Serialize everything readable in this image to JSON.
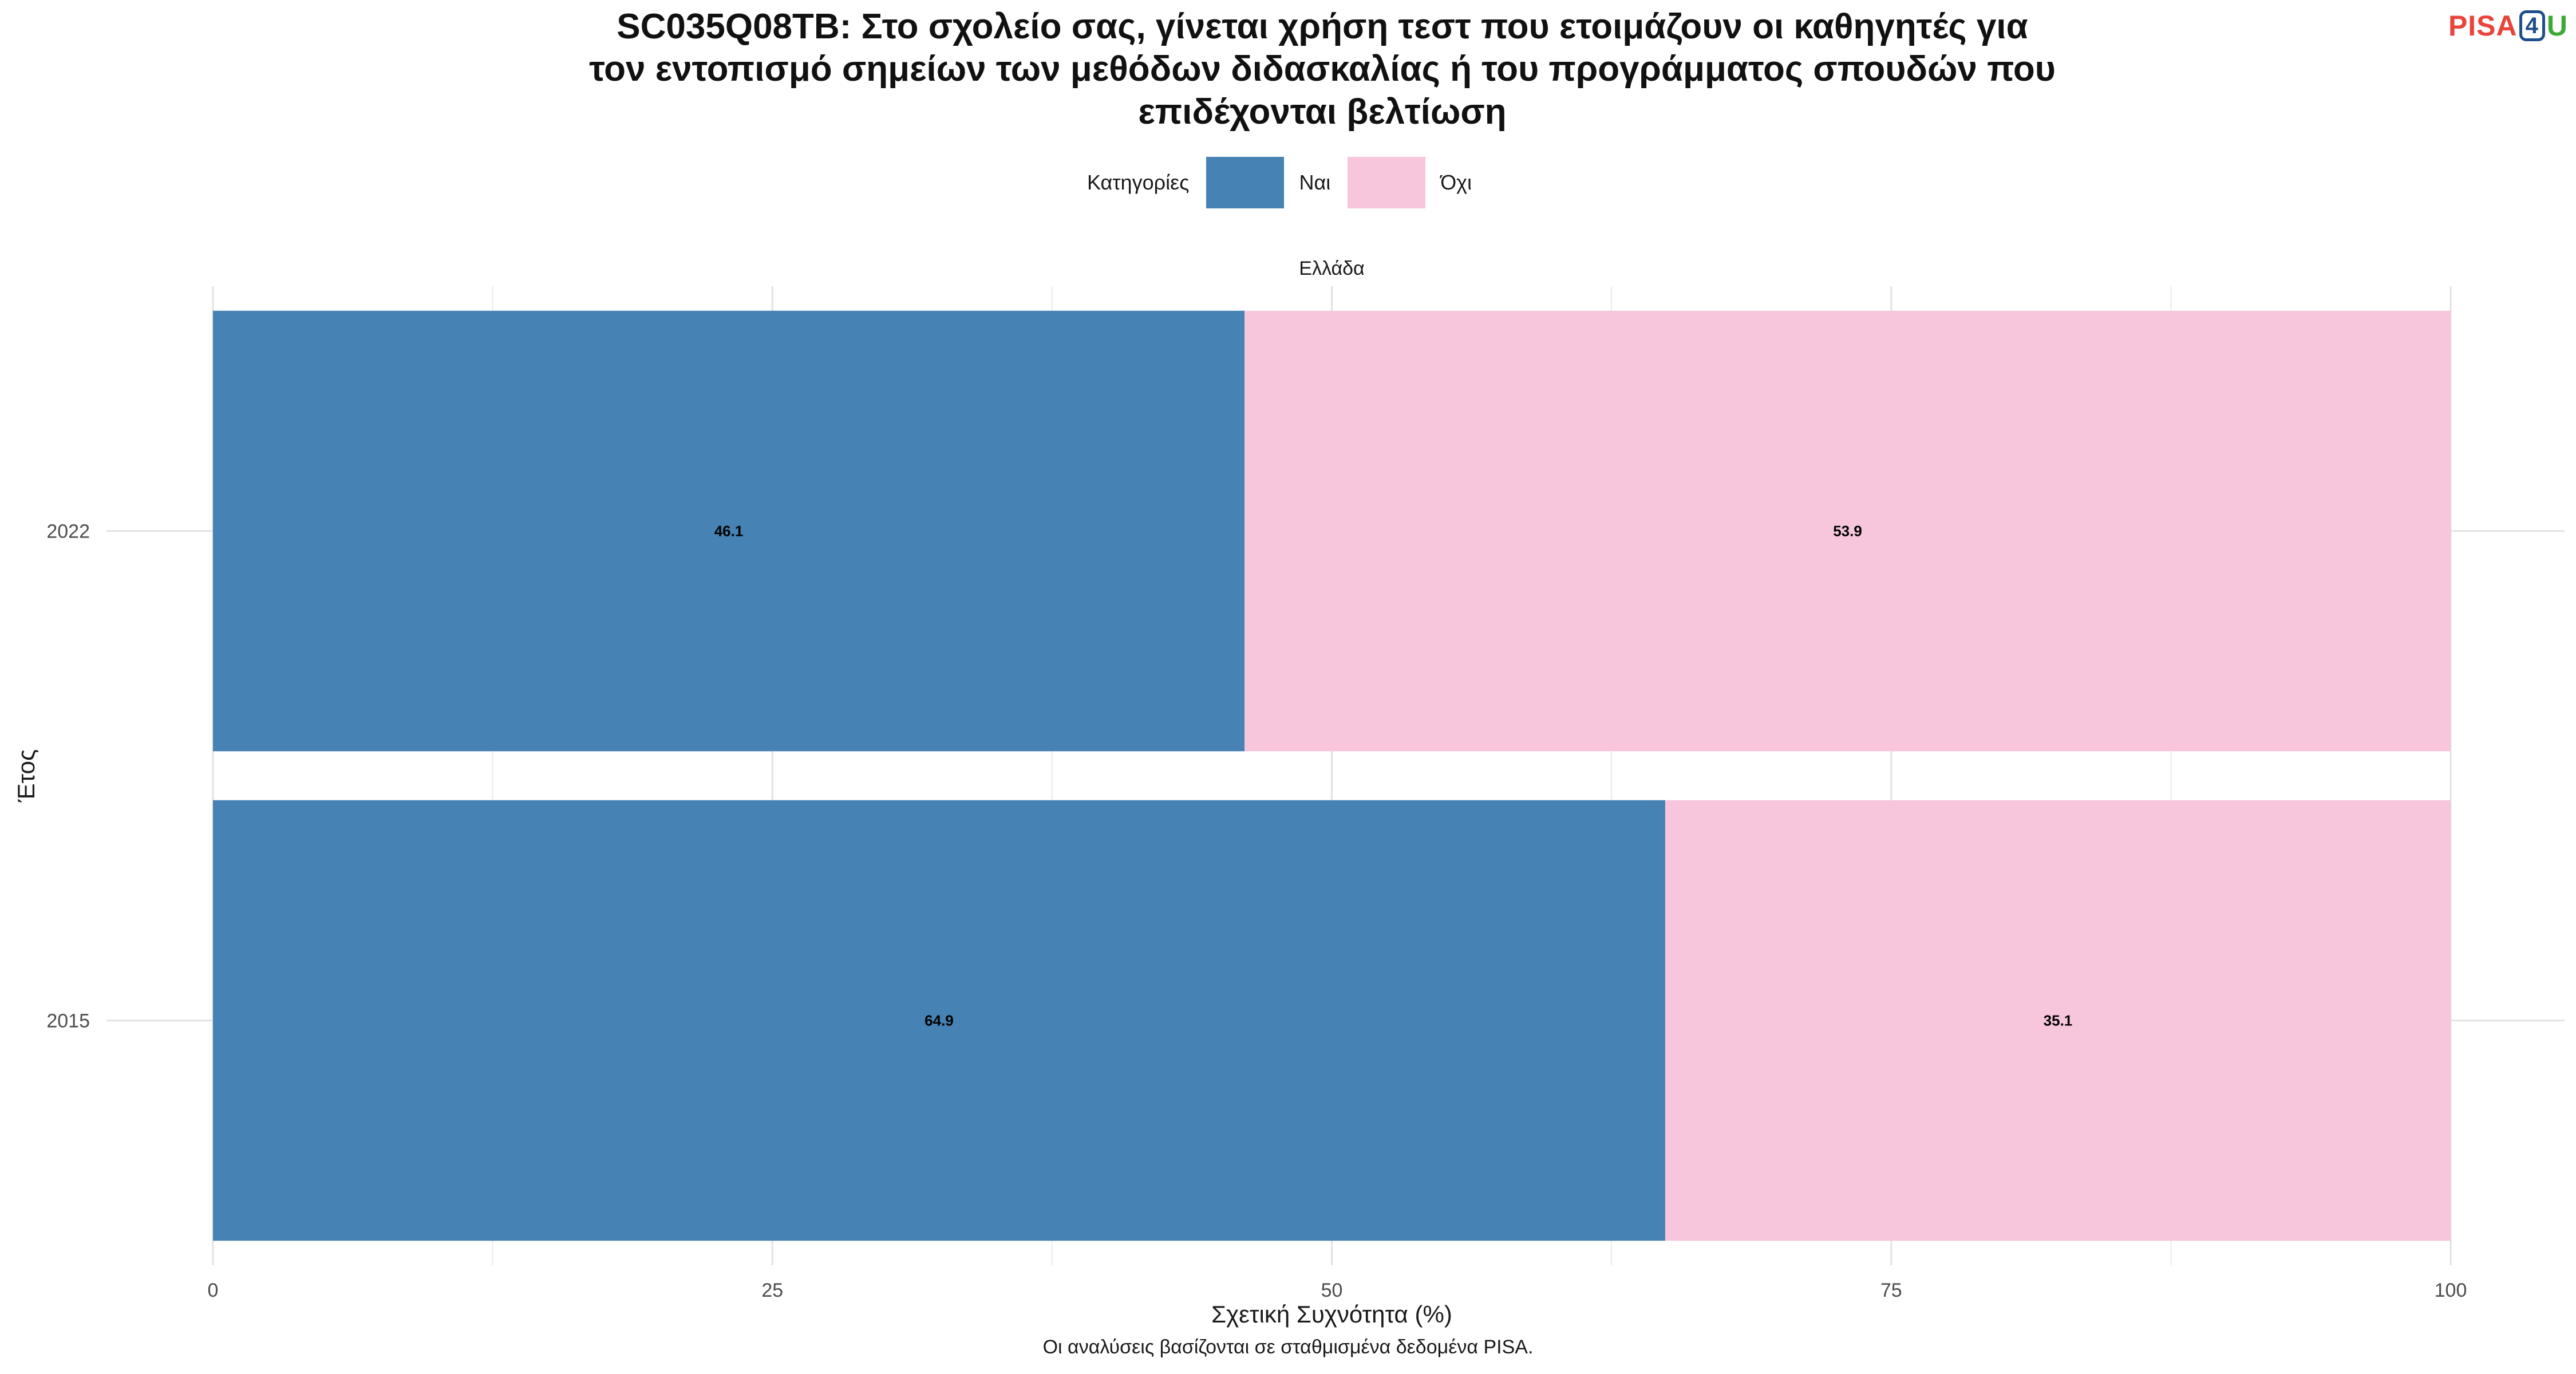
{
  "logo": {
    "pisa": "PISA",
    "four": "4",
    "u": "U"
  },
  "chart_data": {
    "type": "bar",
    "orientation": "horizontal",
    "stacked": true,
    "title_lines": [
      "SC035Q08TB: Στο σχολείο σας, γίνεται χρήση τεστ που ετοιμάζουν οι καθηγητές για",
      "τον εντοπισμό σημείων των μεθόδων διδασκαλίας ή του προγράμματος σπουδών που",
      "επιδέχονται βελτίωση"
    ],
    "facet_label": "Ελλάδα",
    "categories": [
      "2022",
      "2015"
    ],
    "series": [
      {
        "name": "Ναι",
        "color": "#4682b4",
        "values": [
          46.1,
          64.9
        ]
      },
      {
        "name": "Όχι",
        "color": "#f7c6dc",
        "values": [
          53.9,
          35.1
        ]
      }
    ],
    "legend": {
      "title": "Κατηγορίες",
      "position": "top"
    },
    "xlabel": "Σχετική Συχνότητα (%)",
    "ylabel": "Έτος",
    "xlim": [
      0,
      100
    ],
    "xticks": [
      0,
      25,
      50,
      75,
      100
    ],
    "grid": true,
    "caption": "Οι αναλύσεις βασίζονται σε σταθμισμένα δεδομένα PISA."
  }
}
